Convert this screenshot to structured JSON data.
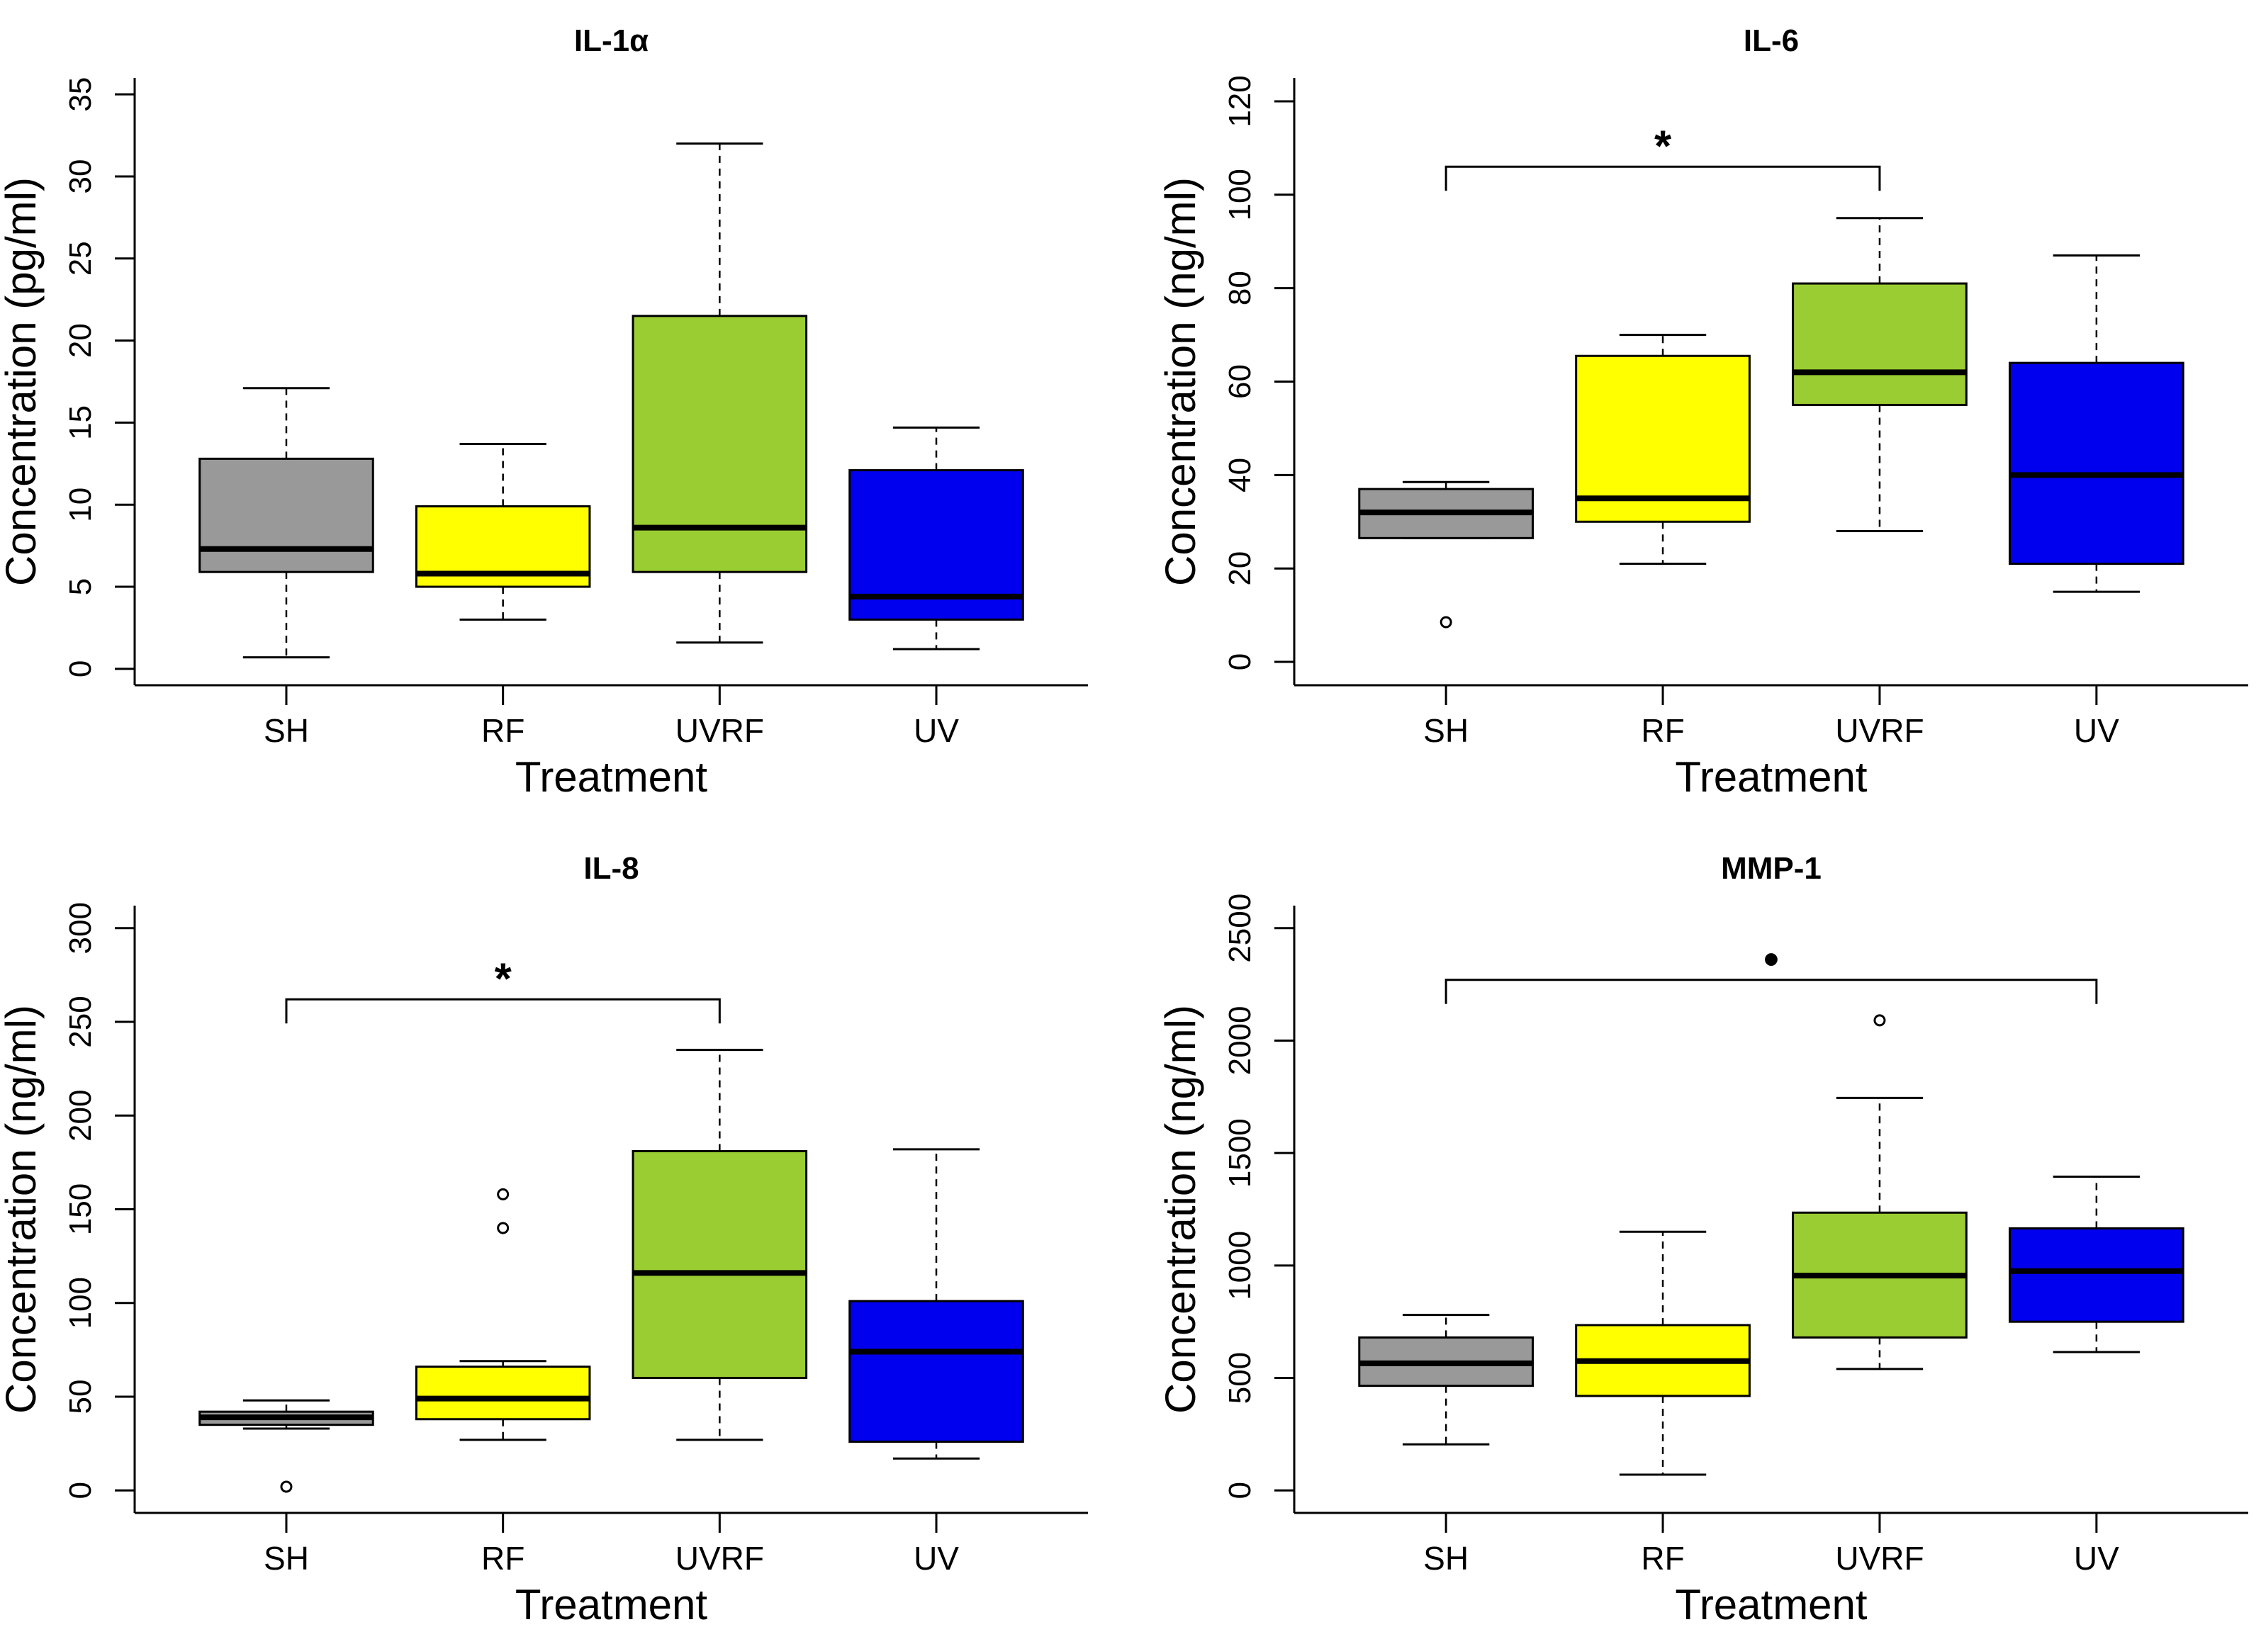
{
  "figure": {
    "panels": 4
  },
  "chart_data": [
    {
      "type": "boxplot",
      "title": "IL-1α",
      "xlabel": "Treatment",
      "ylabel": "Concentration (pg/ml)",
      "categories": [
        "SH",
        "RF",
        "UVRF",
        "UV"
      ],
      "colors": [
        "#999999",
        "#ffff00",
        "#9acd32",
        "#0000ee"
      ],
      "ylim": [
        -1,
        36
      ],
      "yticks": [
        0,
        5,
        10,
        15,
        20,
        25,
        30,
        35
      ],
      "boxes": [
        {
          "min": 0.7,
          "q1": 5.9,
          "median": 7.3,
          "q3": 12.8,
          "max": 17.1,
          "outliers": []
        },
        {
          "min": 3.0,
          "q1": 5.0,
          "median": 5.8,
          "q3": 9.9,
          "max": 13.7,
          "outliers": []
        },
        {
          "min": 1.6,
          "q1": 5.9,
          "median": 8.6,
          "q3": 21.5,
          "max": 32.0,
          "outliers": []
        },
        {
          "min": 1.2,
          "q1": 3.0,
          "median": 4.4,
          "q3": 12.1,
          "max": 14.7,
          "outliers": []
        }
      ],
      "significance": []
    },
    {
      "type": "boxplot",
      "title": "IL-6",
      "xlabel": "Treatment",
      "ylabel": "Concentration (ng/ml)",
      "categories": [
        "SH",
        "RF",
        "UVRF",
        "UV"
      ],
      "colors": [
        "#999999",
        "#ffff00",
        "#9acd32",
        "#0000ee"
      ],
      "ylim": [
        -5,
        125
      ],
      "yticks": [
        0,
        20,
        40,
        60,
        80,
        100,
        120
      ],
      "boxes": [
        {
          "min": 26.5,
          "q1": 26.5,
          "median": 32,
          "q3": 37,
          "max": 38.5,
          "outliers": [
            8.5
          ]
        },
        {
          "min": 21,
          "q1": 30,
          "median": 35,
          "q3": 65.5,
          "max": 70,
          "outliers": []
        },
        {
          "min": 28,
          "q1": 55,
          "median": 62,
          "q3": 81,
          "max": 95,
          "outliers": []
        },
        {
          "min": 15,
          "q1": 21,
          "median": 40,
          "q3": 64,
          "max": 87,
          "outliers": []
        }
      ],
      "significance": [
        {
          "from": 0,
          "to": 2,
          "y": 106,
          "label": "*"
        }
      ]
    },
    {
      "type": "boxplot",
      "title": "IL-8",
      "xlabel": "Treatment",
      "ylabel": "Concentration (ng/ml)",
      "categories": [
        "SH",
        "RF",
        "UVRF",
        "UV"
      ],
      "colors": [
        "#999999",
        "#ffff00",
        "#9acd32",
        "#0000ee"
      ],
      "ylim": [
        -12,
        312
      ],
      "yticks": [
        0,
        50,
        100,
        150,
        200,
        250,
        300
      ],
      "boxes": [
        {
          "min": 33,
          "q1": 35,
          "median": 39,
          "q3": 42,
          "max": 48,
          "outliers": [
            2
          ]
        },
        {
          "min": 27,
          "q1": 38,
          "median": 49,
          "q3": 66,
          "max": 69,
          "outliers": [
            140,
            158
          ]
        },
        {
          "min": 27,
          "q1": 60,
          "median": 116,
          "q3": 181,
          "max": 235,
          "outliers": []
        },
        {
          "min": 17,
          "q1": 26,
          "median": 74,
          "q3": 101,
          "max": 182,
          "outliers": []
        }
      ],
      "significance": [
        {
          "from": 0,
          "to": 2,
          "y": 262,
          "label": "*"
        }
      ]
    },
    {
      "type": "boxplot",
      "title": "MMP-1",
      "xlabel": "Treatment",
      "ylabel": "Concentration (ng/ml)",
      "categories": [
        "SH",
        "RF",
        "UVRF",
        "UV"
      ],
      "colors": [
        "#999999",
        "#ffff00",
        "#9acd32",
        "#0000ee"
      ],
      "ylim": [
        -100,
        2600
      ],
      "yticks": [
        0,
        500,
        1000,
        1500,
        2000,
        2500
      ],
      "boxes": [
        {
          "min": 205,
          "q1": 465,
          "median": 565,
          "q3": 680,
          "max": 780,
          "outliers": []
        },
        {
          "min": 70,
          "q1": 420,
          "median": 575,
          "q3": 735,
          "max": 1150,
          "outliers": []
        },
        {
          "min": 540,
          "q1": 680,
          "median": 955,
          "q3": 1235,
          "max": 1745,
          "outliers": [
            2090
          ]
        },
        {
          "min": 615,
          "q1": 750,
          "median": 975,
          "q3": 1165,
          "max": 1395,
          "outliers": []
        }
      ],
      "significance": [
        {
          "from": 0,
          "to": 3,
          "y": 2270,
          "label": "•"
        }
      ]
    }
  ]
}
